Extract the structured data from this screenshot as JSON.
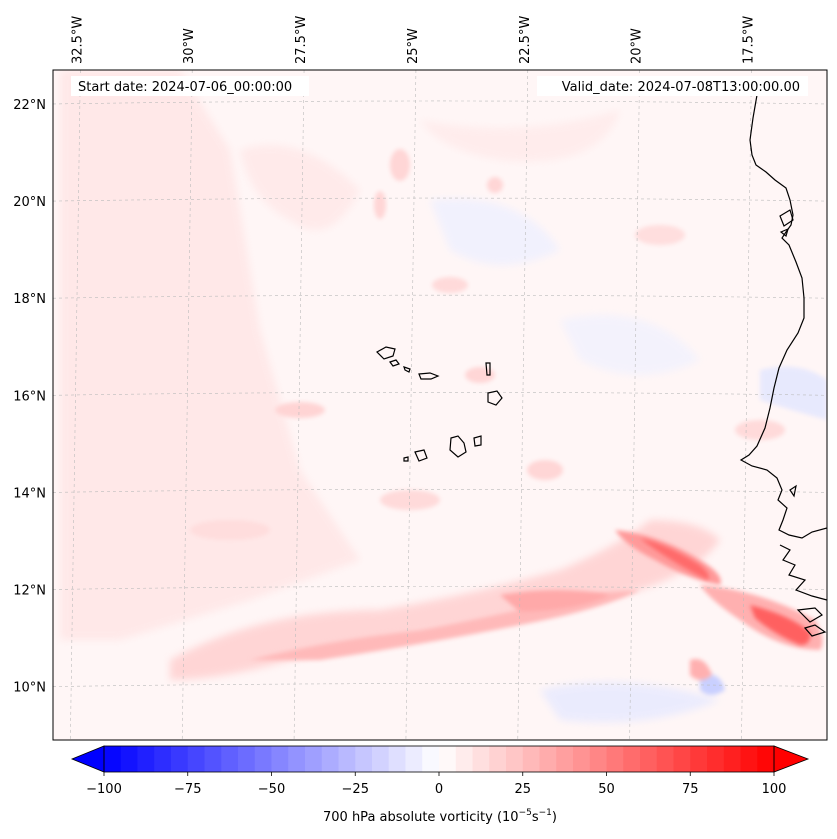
{
  "map": {
    "start_date": "Start date: 2024-07-06_00:00:00",
    "valid_date": "Valid_date: 2024-07-08T13:00:00.00",
    "lon_labels": [
      "32.5°W",
      "30°W",
      "27.5°W",
      "25°W",
      "22.5°W",
      "20°W",
      "17.5°W"
    ],
    "lat_labels": [
      "22°N",
      "20°N",
      "18°N",
      "16°N",
      "14°N",
      "12°N",
      "10°N"
    ],
    "extent": {
      "lon_min": -33.0,
      "lon_max": -15.7,
      "lat_min": 8.9,
      "lat_max": 22.7
    },
    "coast_color": "#000000",
    "grid_color": "#bbbbbb"
  },
  "colorbar": {
    "label": "700 hPa absolute vorticity (10",
    "label_exp": "−5",
    "label_unit": "s",
    "label_unit_exp": "−1",
    "label_end": ")",
    "min": -100,
    "max": 100,
    "step": 5,
    "ticks": [
      "−100",
      "−75",
      "−50",
      "−25",
      "0",
      "25",
      "50",
      "75",
      "100"
    ],
    "colormap": "bwr"
  }
}
